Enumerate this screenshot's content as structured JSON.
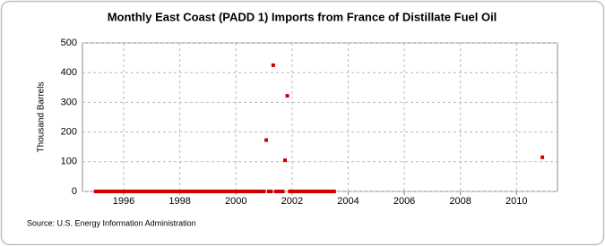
{
  "chart_data": {
    "type": "scatter",
    "title": "Monthly East Coast (PADD 1) Imports from France of Distillate Fuel Oil",
    "y_label": "Thousand Barrels",
    "source": "Source: U.S. Energy Information Administration",
    "color": "#cc0000",
    "grid": true,
    "x": [
      1995,
      1995.08,
      1995.17,
      1995.25,
      1995.33,
      1995.42,
      1995.5,
      1995.58,
      1995.67,
      1995.75,
      1995.83,
      1995.92,
      1996,
      1996.08,
      1996.17,
      1996.25,
      1996.33,
      1996.42,
      1996.5,
      1996.58,
      1996.67,
      1996.75,
      1996.83,
      1996.92,
      1997,
      1997.08,
      1997.17,
      1997.25,
      1997.33,
      1997.42,
      1997.5,
      1997.58,
      1997.67,
      1997.75,
      1997.83,
      1997.92,
      1998,
      1998.08,
      1998.17,
      1998.25,
      1998.33,
      1998.42,
      1998.5,
      1998.58,
      1998.67,
      1998.75,
      1998.83,
      1998.92,
      1999,
      1999.08,
      1999.17,
      1999.25,
      1999.33,
      1999.42,
      1999.5,
      1999.58,
      1999.67,
      1999.75,
      1999.83,
      1999.92,
      2000,
      2000.08,
      2000.17,
      2000.25,
      2000.33,
      2000.42,
      2000.5,
      2000.58,
      2000.67,
      2000.75,
      2000.83,
      2000.92,
      2001,
      2001.08,
      2001.17,
      2001.25,
      2001.33,
      2001.42,
      2001.5,
      2001.58,
      2001.67,
      2001.75,
      2001.83,
      2001.92,
      2002,
      2002.08,
      2002.17,
      2002.25,
      2002.33,
      2002.42,
      2002.5,
      2002.58,
      2002.67,
      2002.75,
      2002.83,
      2002.92,
      2003,
      2003.08,
      2003.17,
      2003.25,
      2003.33,
      2003.42,
      2003.5,
      2010.92
    ],
    "values": [
      0,
      0,
      0,
      0,
      0,
      0,
      0,
      0,
      0,
      0,
      0,
      0,
      0,
      0,
      0,
      0,
      0,
      0,
      0,
      0,
      0,
      0,
      0,
      0,
      0,
      0,
      0,
      0,
      0,
      0,
      0,
      0,
      0,
      0,
      0,
      0,
      0,
      0,
      0,
      0,
      0,
      0,
      0,
      0,
      0,
      0,
      0,
      0,
      0,
      0,
      0,
      0,
      0,
      0,
      0,
      0,
      0,
      0,
      0,
      0,
      0,
      0,
      0,
      0,
      0,
      0,
      0,
      0,
      0,
      0,
      0,
      0,
      0,
      173,
      0,
      0,
      425,
      0,
      0,
      0,
      0,
      105,
      322,
      0,
      0,
      0,
      0,
      0,
      0,
      0,
      0,
      0,
      0,
      0,
      0,
      0,
      0,
      0,
      0,
      0,
      0,
      0,
      0,
      115
    ],
    "xlim": [
      1994.53,
      2011.46
    ],
    "xticks": [
      1996,
      1998,
      2000,
      2002,
      2004,
      2006,
      2008,
      2010
    ],
    "ylim": [
      0,
      500
    ],
    "yticks": [
      0,
      100,
      200,
      300,
      400,
      500
    ]
  }
}
